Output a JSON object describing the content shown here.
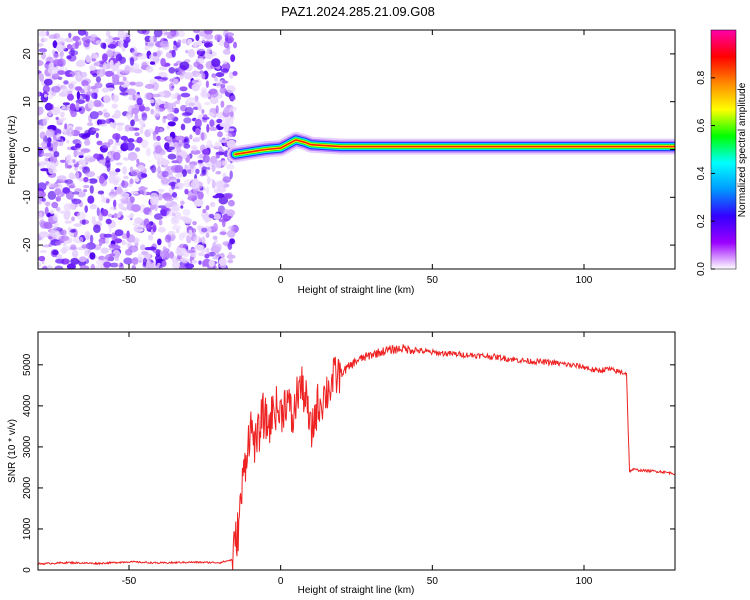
{
  "title": "PAZ1.2024.285.21.09.G08",
  "chart_data": [
    {
      "type": "heatmap",
      "xlabel": "Height of straight line (km)",
      "ylabel": "Frequency (Hz)",
      "xlim": [
        -80,
        130
      ],
      "ylim": [
        -25,
        25
      ],
      "xticks": [
        -50,
        0,
        50,
        100
      ],
      "yticks": [
        -20,
        -10,
        0,
        10,
        20
      ],
      "colorbar": {
        "label": "Normalized spectral amplitude",
        "range": [
          0,
          1
        ],
        "ticks": [
          0.0,
          0.2,
          0.4,
          0.6,
          0.8
        ],
        "tick_labels": [
          "0.0",
          "0.2",
          "0.4",
          "0.6",
          "0.8"
        ],
        "colormap": [
          "#ffffff",
          "#9b00ff",
          "#3300ff",
          "#0099ff",
          "#00ffff",
          "#00ff00",
          "#ffff00",
          "#ff8800",
          "#ff0000",
          "#ff00aa"
        ]
      },
      "features": {
        "noise_region_x": [
          -80,
          -15
        ],
        "signal_line_frequency_hz": [
          [
            -15,
            -1.0
          ],
          [
            -10,
            -0.5
          ],
          [
            -5,
            0.0
          ],
          [
            0,
            0.3
          ],
          [
            5,
            2.0
          ],
          [
            8,
            1.5
          ],
          [
            10,
            1.0
          ],
          [
            20,
            0.6
          ],
          [
            50,
            0.6
          ],
          [
            100,
            0.6
          ],
          [
            130,
            0.6
          ]
        ]
      }
    },
    {
      "type": "line",
      "xlabel": "Height of straight line (km)",
      "ylabel": "SNR (10 * v/v)",
      "xlim": [
        -80,
        130
      ],
      "ylim": [
        0,
        5800
      ],
      "xticks": [
        -50,
        0,
        50,
        100
      ],
      "yticks": [
        0,
        1000,
        2000,
        3000,
        4000,
        5000
      ],
      "color": "#ee2222",
      "series": [
        {
          "x": [
            -80,
            -70,
            -60,
            -50,
            -40,
            -30,
            -20,
            -16,
            -14,
            -12,
            -10,
            -8,
            -6,
            -4,
            -2,
            0,
            2,
            4,
            6,
            8,
            10,
            12,
            14,
            18,
            20,
            25,
            30,
            35,
            40,
            45,
            50,
            60,
            70,
            80,
            90,
            100,
            104,
            108,
            110,
            114,
            115,
            116,
            120,
            125,
            130
          ],
          "y": [
            150,
            180,
            160,
            200,
            170,
            190,
            180,
            250,
            1000,
            2500,
            3500,
            3000,
            3800,
            3500,
            4000,
            3800,
            4200,
            3600,
            4500,
            4300,
            3300,
            4000,
            4200,
            4700,
            4800,
            5100,
            5250,
            5350,
            5400,
            5350,
            5300,
            5250,
            5200,
            5100,
            5050,
            4950,
            4850,
            4900,
            4850,
            4800,
            2400,
            2450,
            2420,
            2400,
            2350
          ]
        }
      ]
    }
  ]
}
